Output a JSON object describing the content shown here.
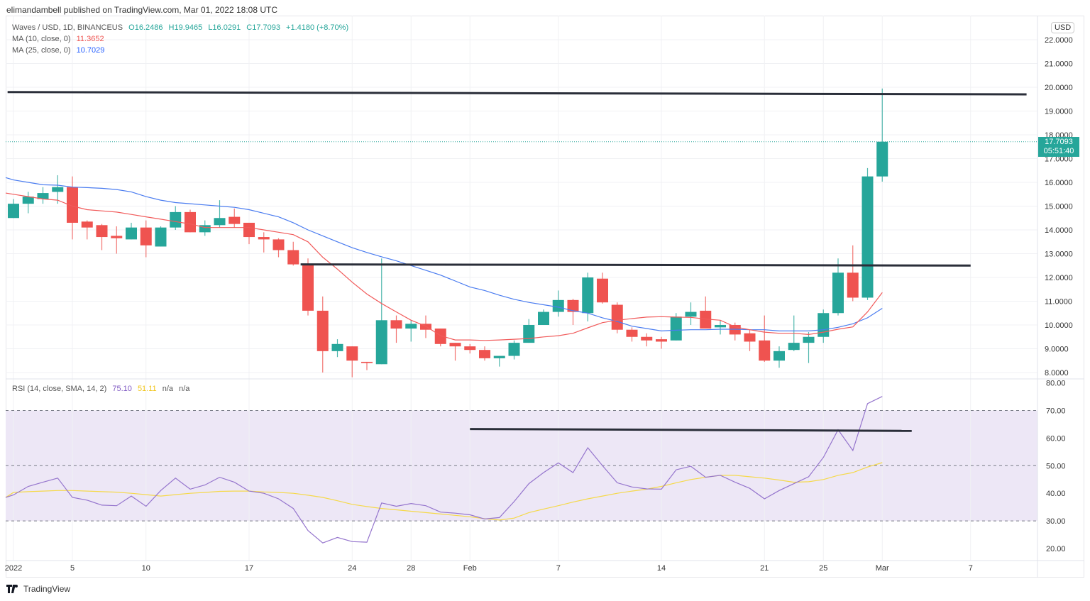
{
  "header": {
    "published": "elimandambell published on TradingView.com, Mar 01, 2022 18:08 UTC"
  },
  "legend": {
    "symbol": "Waves / USD, 1D, BINANCEUS",
    "open": "O16.2486",
    "high": "H19.9465",
    "low": "L16.0291",
    "close": "C17.7093",
    "change": "+1.4180 (+8.70%)",
    "ma10_label": "MA (10, close, 0)",
    "ma10_value": "11.3652",
    "ma25_label": "MA (25, close, 0)",
    "ma25_value": "10.7029",
    "rsi_label": "RSI (14, close, SMA, 14, 2)",
    "rsi_value": "75.10",
    "rsi_sma_value": "51.11",
    "na1": "n/a",
    "na2": "n/a"
  },
  "axis": {
    "currency": "USD",
    "last_price": "17.7093",
    "countdown": "05:51:40"
  },
  "footer": {
    "brand": "TradingView"
  },
  "colors": {
    "up": "#26a69a",
    "down": "#ef5350",
    "ma10": "#f15b5b",
    "ma25": "#4a7cf0",
    "rsi": "#9575cd",
    "rsi_sma": "#f5d94a",
    "band": "#ede7f6"
  },
  "chart_data": {
    "type": "candlestick",
    "title": "Waves / USD, 1D, BINANCEUS",
    "ylim": [
      7.8,
      22.6
    ],
    "y_ticks": [
      "8.0000",
      "9.0000",
      "10.0000",
      "11.0000",
      "12.0000",
      "13.0000",
      "14.0000",
      "15.0000",
      "16.0000",
      "17.0000",
      "18.0000",
      "19.0000",
      "20.0000",
      "21.0000",
      "22.0000"
    ],
    "x_ticks": [
      {
        "label": "2022",
        "i": 0
      },
      {
        "label": "5",
        "i": 4
      },
      {
        "label": "10",
        "i": 9
      },
      {
        "label": "17",
        "i": 16
      },
      {
        "label": "24",
        "i": 23
      },
      {
        "label": "28",
        "i": 27
      },
      {
        "label": "Feb",
        "i": 31
      },
      {
        "label": "7",
        "i": 37
      },
      {
        "label": "14",
        "i": 44
      },
      {
        "label": "21",
        "i": 51
      },
      {
        "label": "25",
        "i": 55
      },
      {
        "label": "Mar",
        "i": 59
      },
      {
        "label": "7",
        "i": 65
      }
    ],
    "ohlc": [
      [
        14.5,
        15.3,
        14.5,
        15.1
      ],
      [
        15.1,
        15.6,
        14.7,
        15.4
      ],
      [
        15.3,
        15.8,
        15.1,
        15.55
      ],
      [
        15.6,
        16.3,
        15.1,
        15.8
      ],
      [
        15.8,
        16.25,
        13.6,
        14.3
      ],
      [
        14.35,
        14.4,
        13.6,
        14.1
      ],
      [
        14.2,
        14.25,
        13.15,
        13.7
      ],
      [
        13.75,
        14.15,
        13.0,
        13.65
      ],
      [
        13.6,
        14.3,
        13.6,
        14.1
      ],
      [
        14.1,
        14.4,
        12.85,
        13.35
      ],
      [
        13.3,
        14.15,
        13.3,
        14.1
      ],
      [
        14.1,
        15.0,
        14.0,
        14.75
      ],
      [
        14.75,
        14.85,
        13.9,
        13.9
      ],
      [
        13.9,
        14.4,
        13.75,
        14.2
      ],
      [
        14.2,
        15.25,
        14.1,
        14.5
      ],
      [
        14.55,
        14.9,
        14.1,
        14.25
      ],
      [
        14.3,
        14.3,
        13.4,
        13.7
      ],
      [
        13.7,
        13.9,
        13.05,
        13.6
      ],
      [
        13.6,
        13.65,
        12.85,
        13.15
      ],
      [
        13.15,
        13.5,
        12.5,
        12.55
      ],
      [
        12.55,
        12.8,
        10.4,
        10.6
      ],
      [
        10.6,
        11.2,
        8.0,
        8.9
      ],
      [
        8.9,
        9.4,
        8.65,
        9.2
      ],
      [
        9.1,
        9.1,
        7.8,
        8.5
      ],
      [
        8.45,
        8.45,
        8.1,
        8.4
      ],
      [
        8.35,
        12.8,
        8.35,
        10.2
      ],
      [
        10.2,
        10.4,
        9.25,
        9.85
      ],
      [
        9.85,
        10.2,
        9.3,
        10.05
      ],
      [
        10.05,
        10.4,
        9.45,
        9.8
      ],
      [
        9.85,
        9.85,
        9.1,
        9.2
      ],
      [
        9.25,
        9.25,
        8.5,
        9.1
      ],
      [
        9.1,
        9.2,
        8.8,
        8.95
      ],
      [
        8.95,
        9.1,
        8.5,
        8.6
      ],
      [
        8.6,
        8.7,
        8.25,
        8.7
      ],
      [
        8.7,
        9.35,
        8.55,
        9.25
      ],
      [
        9.25,
        10.25,
        9.25,
        10.0
      ],
      [
        10.0,
        10.65,
        10.0,
        10.55
      ],
      [
        10.55,
        11.45,
        10.35,
        11.05
      ],
      [
        11.05,
        11.1,
        10.0,
        10.55
      ],
      [
        10.5,
        12.2,
        10.15,
        12.0
      ],
      [
        11.95,
        12.2,
        10.9,
        10.95
      ],
      [
        10.85,
        10.95,
        9.65,
        9.8
      ],
      [
        9.8,
        9.9,
        9.3,
        9.5
      ],
      [
        9.5,
        9.65,
        9.1,
        9.35
      ],
      [
        9.4,
        9.5,
        9.0,
        9.3
      ],
      [
        9.35,
        10.5,
        9.35,
        10.35
      ],
      [
        10.35,
        10.95,
        10.0,
        10.55
      ],
      [
        10.6,
        11.2,
        9.85,
        9.85
      ],
      [
        9.9,
        10.2,
        9.6,
        10.0
      ],
      [
        10.0,
        10.1,
        9.35,
        9.6
      ],
      [
        9.65,
        9.8,
        8.9,
        9.3
      ],
      [
        9.35,
        10.4,
        8.45,
        8.5
      ],
      [
        8.5,
        9.1,
        8.2,
        8.9
      ],
      [
        8.95,
        10.4,
        8.9,
        9.25
      ],
      [
        9.25,
        9.7,
        8.4,
        9.5
      ],
      [
        9.5,
        10.65,
        9.25,
        10.5
      ],
      [
        10.5,
        12.8,
        10.4,
        12.2
      ],
      [
        12.2,
        13.35,
        11.0,
        11.15
      ],
      [
        11.15,
        16.6,
        11.05,
        16.25
      ],
      [
        16.2486,
        19.9465,
        16.0291,
        17.7093
      ]
    ],
    "ma10": [
      15.5,
      15.4,
      15.3,
      15.25,
      15.0,
      14.85,
      14.8,
      14.75,
      14.65,
      14.55,
      14.45,
      14.35,
      14.25,
      14.1,
      14.1,
      14.1,
      14.1,
      14.0,
      13.9,
      13.8,
      13.5,
      12.85,
      12.35,
      11.8,
      11.3,
      10.9,
      10.55,
      10.2,
      9.95,
      9.55,
      9.37,
      9.37,
      9.35,
      9.37,
      9.4,
      9.43,
      9.5,
      9.55,
      9.65,
      9.88,
      10.1,
      10.2,
      10.27,
      10.33,
      10.35,
      10.33,
      10.32,
      10.25,
      10.2,
      9.92,
      9.8,
      9.7,
      9.65,
      9.65,
      9.6,
      9.7,
      9.82,
      9.92,
      10.55,
      11.3652
    ],
    "ma25": [
      16.1,
      16.0,
      15.9,
      15.88,
      15.8,
      15.78,
      15.75,
      15.7,
      15.6,
      15.4,
      15.25,
      15.15,
      15.1,
      15.05,
      15.0,
      14.95,
      14.85,
      14.7,
      14.55,
      14.3,
      14.0,
      13.75,
      13.5,
      13.25,
      13.05,
      12.87,
      12.7,
      12.5,
      12.3,
      12.1,
      11.85,
      11.6,
      11.45,
      11.25,
      11.08,
      10.95,
      10.85,
      10.75,
      10.6,
      10.5,
      10.3,
      10.15,
      9.95,
      9.85,
      9.75,
      9.78,
      9.8,
      9.8,
      9.82,
      9.82,
      9.8,
      9.8,
      9.75,
      9.75,
      9.75,
      9.8,
      9.9,
      10.05,
      10.3,
      10.7029
    ],
    "lines": [
      {
        "name": "resistance",
        "from": [
          -0.4,
          19.8
        ],
        "to": [
          68.8,
          19.7
        ]
      },
      {
        "name": "support",
        "from": [
          19.5,
          12.55
        ],
        "to": [
          65,
          12.5
        ]
      }
    ],
    "rsi": {
      "ylim": [
        17,
        82
      ],
      "y_ticks": [
        "20.00",
        "30.00",
        "40.00",
        "50.00",
        "60.00",
        "70.00",
        "80.00"
      ],
      "levels": [
        30,
        50,
        70
      ],
      "values": [
        39.4,
        42.5,
        44,
        45.5,
        38.5,
        37.5,
        35.7,
        35.5,
        39,
        35.3,
        41,
        45.5,
        41.5,
        43,
        45.8,
        44,
        40.8,
        40,
        38,
        34.5,
        26.5,
        22,
        24,
        22.5,
        22.3,
        36.5,
        35.3,
        36.3,
        35.5,
        33.2,
        32.8,
        32.2,
        30.7,
        31.2,
        37,
        43.5,
        47.5,
        51,
        47.5,
        56.5,
        50,
        43.8,
        42.3,
        41.6,
        41.5,
        48.5,
        49.8,
        45.8,
        46.5,
        44,
        41.8,
        38,
        41,
        43.5,
        46,
        53,
        63,
        55.5,
        72.5,
        75.1
      ],
      "sma": [
        40.3,
        40.6,
        40.8,
        41,
        41,
        40.8,
        40.6,
        40.4,
        40,
        39.5,
        39,
        39.5,
        40,
        40.3,
        40.7,
        40.8,
        40.8,
        40.5,
        40.3,
        40,
        39.3,
        38.5,
        37.3,
        36,
        35.2,
        34.5,
        34,
        33.5,
        33,
        32.5,
        32,
        31.5,
        30.8,
        30.3,
        31,
        33,
        34.3,
        35.5,
        36.8,
        38,
        39,
        40,
        40.8,
        41.5,
        42.5,
        43.8,
        45,
        45.8,
        46.5,
        46.5,
        46,
        45.5,
        44.8,
        44,
        44.2,
        45,
        46.5,
        47.5,
        49.5,
        51.11
      ],
      "line": {
        "from": [
          31,
          63.3
        ],
        "to": [
          61,
          62.6
        ]
      }
    }
  }
}
